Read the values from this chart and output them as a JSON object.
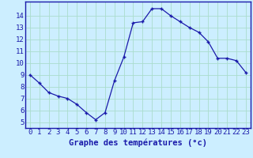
{
  "hours": [
    0,
    1,
    2,
    3,
    4,
    5,
    6,
    7,
    8,
    9,
    10,
    11,
    12,
    13,
    14,
    15,
    16,
    17,
    18,
    19,
    20,
    21,
    22,
    23
  ],
  "temps": [
    9.0,
    8.3,
    7.5,
    7.2,
    7.0,
    6.5,
    5.8,
    5.2,
    5.8,
    8.5,
    10.5,
    13.4,
    13.5,
    14.6,
    14.6,
    14.0,
    13.5,
    13.0,
    12.6,
    11.8,
    10.4,
    10.4,
    10.2,
    9.2
  ],
  "line_color": "#1a1aaa",
  "marker": "+",
  "bg_color": "#cceeff",
  "grid_color": "#aaddcc",
  "axis_label_color": "#1a1aaa",
  "tick_color": "#1a1aaa",
  "xlabel": "Graphe des températures (°c)",
  "ylim": [
    4.5,
    15.2
  ],
  "xlim": [
    -0.5,
    23.5
  ],
  "yticks": [
    5,
    6,
    7,
    8,
    9,
    10,
    11,
    12,
    13,
    14
  ],
  "xticks": [
    0,
    1,
    2,
    3,
    4,
    5,
    6,
    7,
    8,
    9,
    10,
    11,
    12,
    13,
    14,
    15,
    16,
    17,
    18,
    19,
    20,
    21,
    22,
    23
  ],
  "xlabel_fontsize": 7.5,
  "tick_fontsize": 6.5
}
